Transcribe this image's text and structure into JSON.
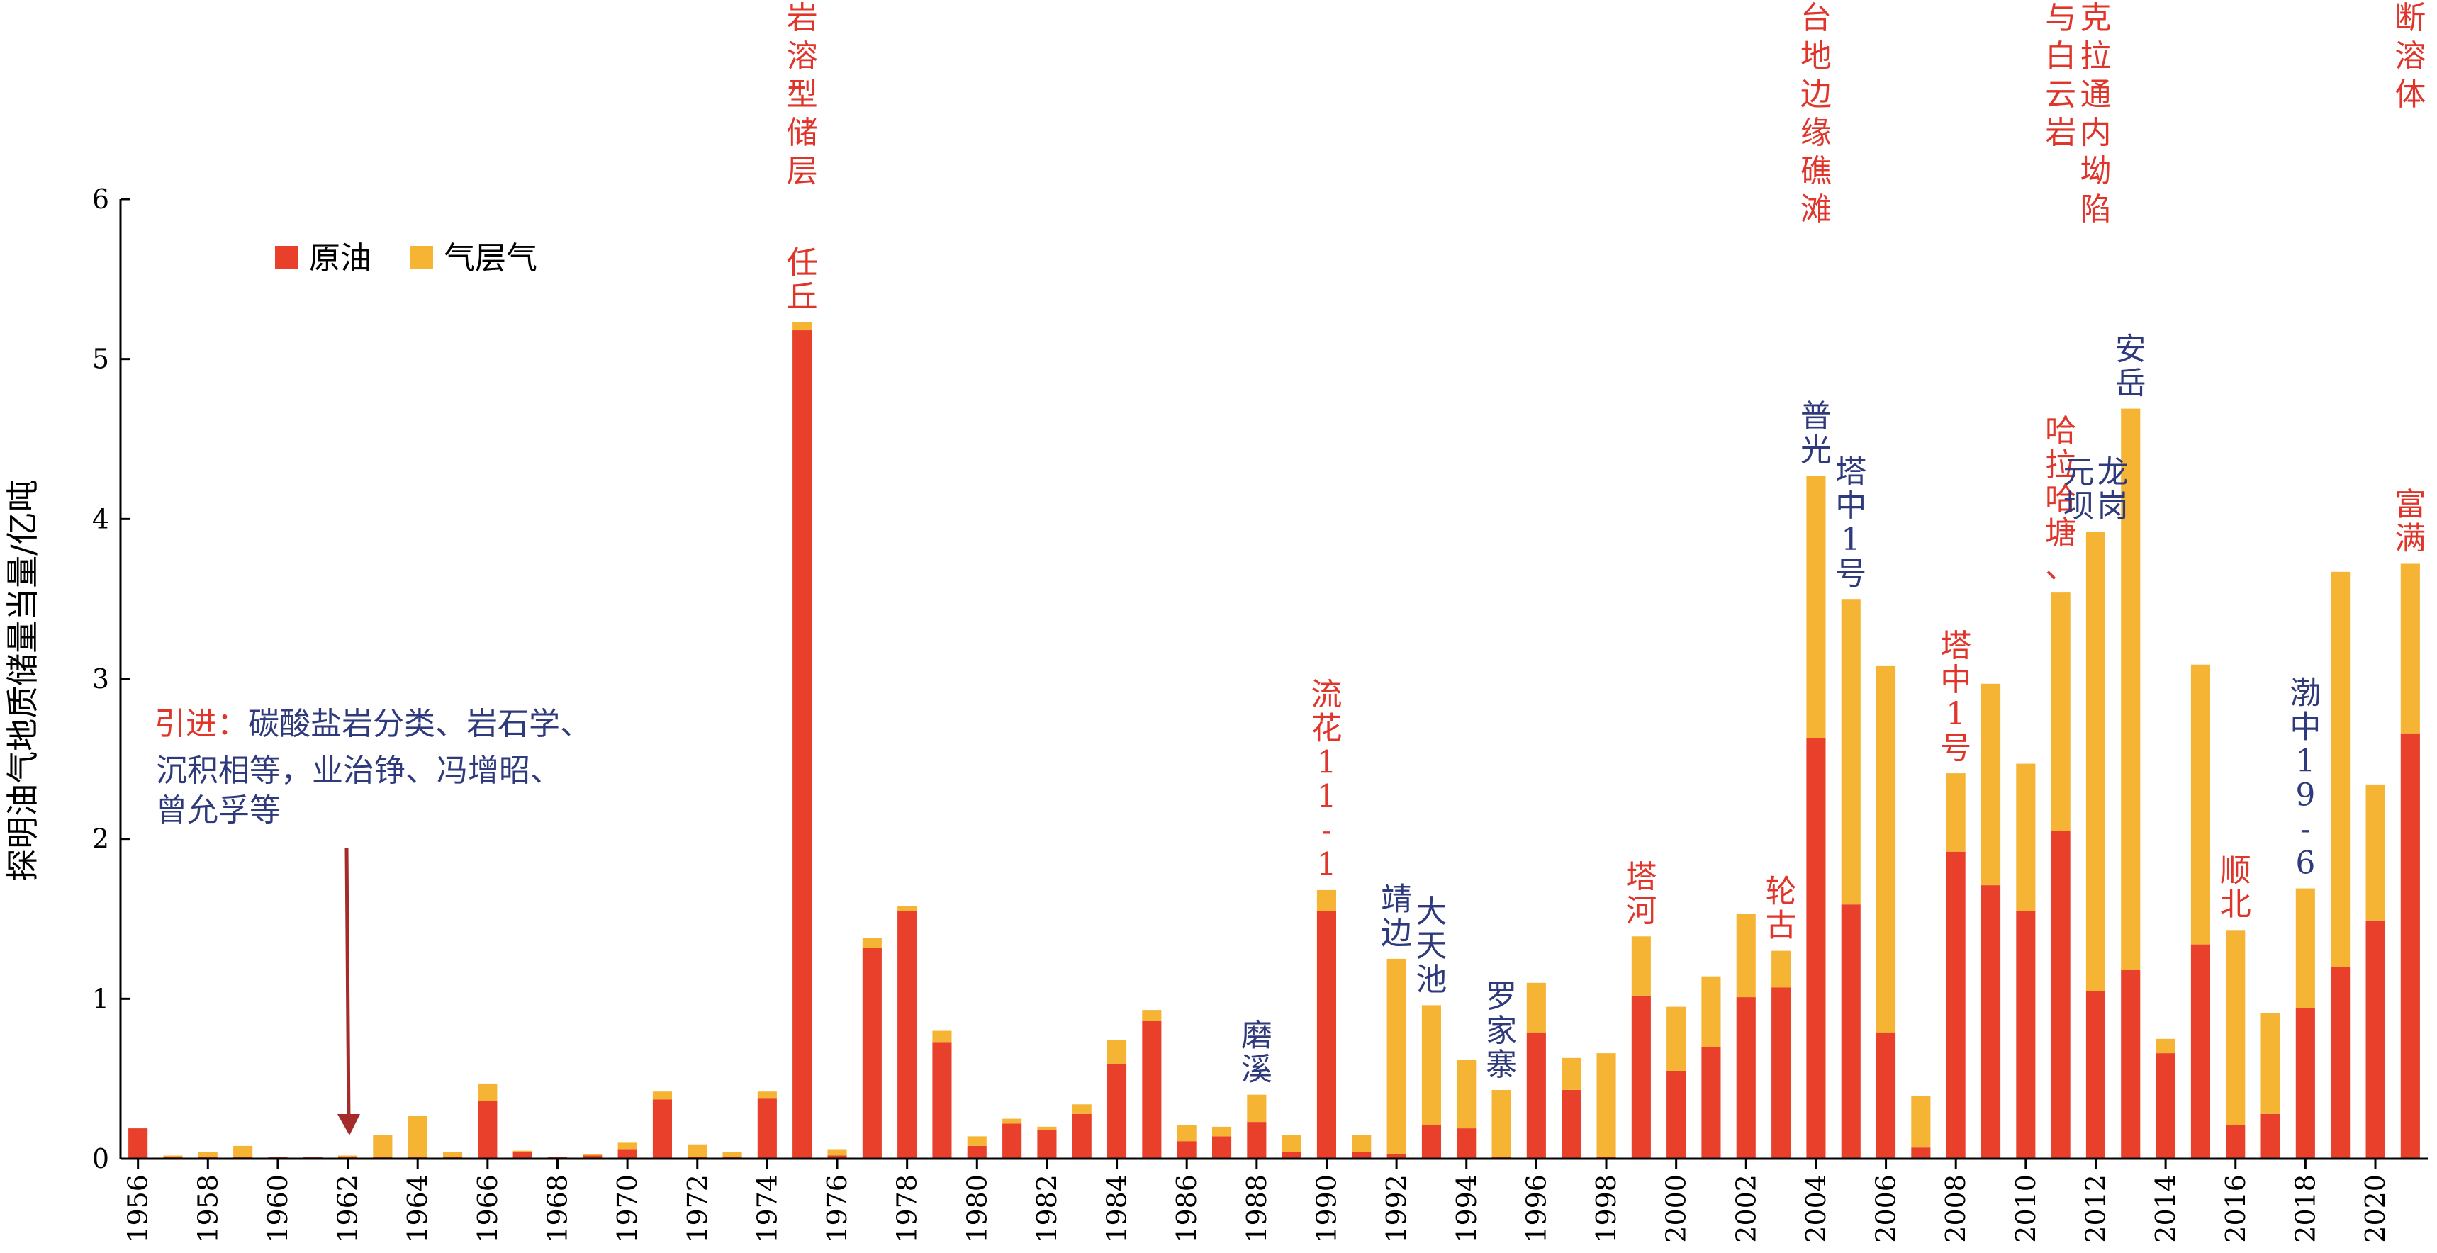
{
  "chart_data": {
    "type": "bar",
    "stacked": true,
    "ylabel": "探明油气地质储量当量/亿吨",
    "ylim": [
      0,
      6
    ],
    "yticks": [
      "0",
      "1",
      "2",
      "3",
      "4",
      "5",
      "6"
    ],
    "colors": {
      "oil": "#e8402b",
      "gas": "#f6b434",
      "red_text": "#e0352a",
      "blue_text": "#2f3a7c",
      "arrow": "#a52a2a"
    },
    "legend": [
      {
        "key": "oil",
        "label": "原油"
      },
      {
        "key": "gas",
        "label": "气层气"
      }
    ],
    "x": [
      1956,
      1957,
      1958,
      1959,
      1960,
      1961,
      1962,
      1963,
      1964,
      1965,
      1966,
      1967,
      1968,
      1969,
      1970,
      1971,
      1972,
      1973,
      1974,
      1975,
      1976,
      1977,
      1978,
      1979,
      1980,
      1981,
      1982,
      1983,
      1984,
      1985,
      1986,
      1987,
      1988,
      1989,
      1990,
      1991,
      1992,
      1993,
      1994,
      1995,
      1996,
      1997,
      1998,
      1999,
      2000,
      2001,
      2002,
      2003,
      2004,
      2005,
      2006,
      2007,
      2008,
      2009,
      2010,
      2011,
      2012,
      2013,
      2014,
      2015,
      2016,
      2017,
      2018,
      2019,
      2020,
      2021
    ],
    "x_tick_labels": [
      "1956",
      "1958",
      "1960",
      "1962",
      "1964",
      "1966",
      "1968",
      "1970",
      "1972",
      "1974",
      "1976",
      "1978",
      "1980",
      "1982",
      "1984",
      "1986",
      "1988",
      "1990",
      "1992",
      "1994",
      "1996",
      "1998",
      "2000",
      "2002",
      "2004",
      "2006",
      "2008",
      "2010",
      "2012",
      "2014",
      "2016",
      "2018",
      "2020"
    ],
    "series": [
      {
        "name": "原油",
        "key": "oil",
        "values": [
          0.19,
          0.01,
          0.01,
          0.01,
          0.01,
          0.01,
          0.01,
          0.01,
          0.01,
          0.01,
          0.36,
          0.04,
          0.01,
          0.02,
          0.06,
          0.37,
          0.01,
          0.01,
          0.38,
          5.18,
          0.02,
          1.32,
          1.55,
          0.73,
          0.08,
          0.22,
          0.18,
          0.28,
          0.59,
          0.86,
          0.11,
          0.14,
          0.23,
          0.04,
          1.55,
          0.04,
          0.03,
          0.21,
          0.19,
          0.01,
          0.79,
          0.43,
          0.01,
          1.02,
          0.55,
          0.7,
          1.01,
          1.07,
          2.63,
          1.59,
          0.79,
          0.07,
          1.92,
          1.71,
          1.55,
          2.05,
          1.05,
          1.18,
          0.66,
          1.34,
          0.21,
          0.28,
          0.94,
          1.2,
          1.49,
          2.66
        ]
      },
      {
        "name": "气层气",
        "key": "gas",
        "values": [
          0.0,
          0.01,
          0.03,
          0.07,
          0.0,
          0.0,
          0.01,
          0.14,
          0.26,
          0.03,
          0.11,
          0.01,
          0.0,
          0.01,
          0.04,
          0.05,
          0.08,
          0.03,
          0.04,
          0.05,
          0.04,
          0.06,
          0.03,
          0.07,
          0.06,
          0.03,
          0.02,
          0.06,
          0.15,
          0.07,
          0.1,
          0.06,
          0.17,
          0.11,
          0.13,
          0.11,
          1.22,
          0.75,
          0.43,
          0.42,
          0.31,
          0.2,
          0.65,
          0.37,
          0.4,
          0.44,
          0.52,
          0.23,
          1.64,
          1.91,
          2.29,
          0.32,
          0.49,
          1.26,
          0.92,
          1.49,
          2.87,
          3.51,
          0.09,
          1.75,
          1.22,
          0.63,
          0.75,
          2.47,
          0.85,
          1.06
        ]
      }
    ],
    "bar_labels": [
      {
        "year": 1975,
        "text": "任丘",
        "color": "red"
      },
      {
        "year": 1988,
        "text": "磨溪",
        "color": "blue"
      },
      {
        "year": 1990,
        "text": "流花11-1",
        "color": "red"
      },
      {
        "year": 1992,
        "text": "靖边",
        "color": "blue"
      },
      {
        "year": 1993,
        "text": "大天池",
        "color": "blue"
      },
      {
        "year": 1995,
        "text": "罗家寨",
        "color": "blue"
      },
      {
        "year": 1999,
        "text": "塔河",
        "color": "red"
      },
      {
        "year": 2003,
        "text": "轮古",
        "color": "red"
      },
      {
        "year": 2004,
        "text": "普光",
        "color": "blue"
      },
      {
        "year": 2005,
        "text": "塔中1号",
        "color": "blue"
      },
      {
        "year": 2008,
        "text": "塔中1号",
        "color": "red"
      },
      {
        "year": 2011,
        "text": "哈拉哈塘、",
        "color": "red"
      },
      {
        "year": 2012,
        "text": "元坝",
        "color": "blue"
      },
      {
        "year": 2012,
        "text": "龙岗",
        "color": "blue"
      },
      {
        "year": 2013,
        "text": "安岳",
        "color": "blue"
      },
      {
        "year": 2016,
        "text": "顺北",
        "color": "red"
      },
      {
        "year": 2018,
        "text": "渤中19-6",
        "color": "blue"
      },
      {
        "year": 2021,
        "text": "富满",
        "color": "red"
      }
    ],
    "era_labels": [
      {
        "year": 1975,
        "text": "岩溶型储层"
      },
      {
        "year": 2004,
        "text": "台地边缘礁滩"
      },
      {
        "year": 2011,
        "text": "与白云岩"
      },
      {
        "year": 2012,
        "text": "克拉通内坳陷"
      },
      {
        "year": 2021,
        "text": "断溶体"
      }
    ],
    "annotation": {
      "prefix": "引进：",
      "line1": "碳酸盐岩分类、岩石学、",
      "line2": "沉积相等，业治铮、冯增昭、",
      "line3": "曾允孚等"
    }
  }
}
